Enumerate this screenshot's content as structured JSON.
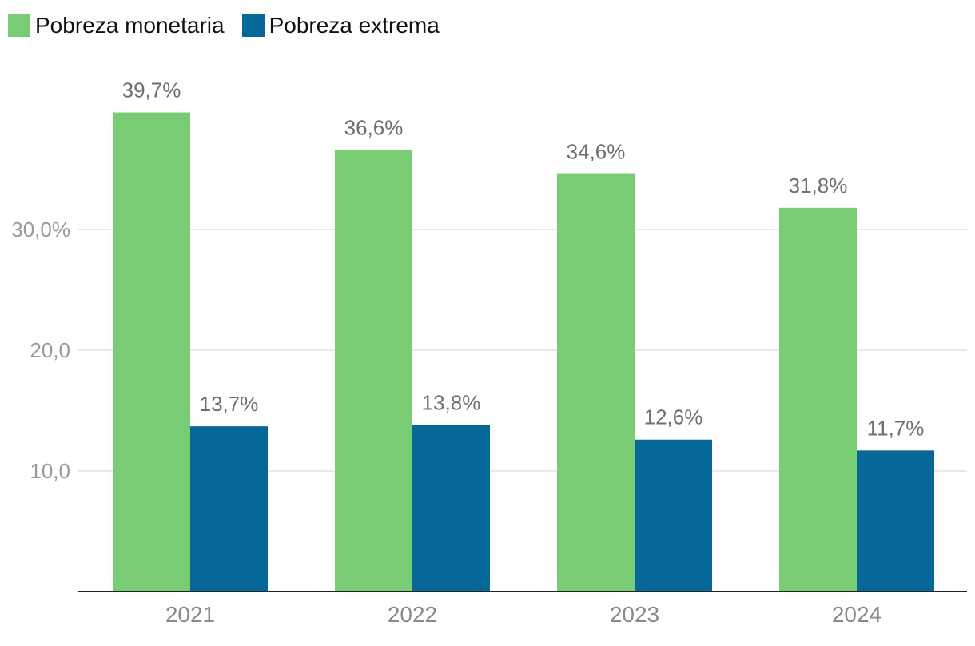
{
  "chart_data": {
    "type": "bar",
    "categories": [
      "2021",
      "2022",
      "2023",
      "2024"
    ],
    "series": [
      {
        "name": "Pobreza monetaria",
        "color": "#78cd74",
        "values": [
          39.7,
          36.6,
          34.6,
          31.8
        ],
        "labels": [
          "39,7%",
          "36,6%",
          "34,6%",
          "31,8%"
        ]
      },
      {
        "name": "Pobreza extrema",
        "color": "#066899",
        "values": [
          13.7,
          13.8,
          12.6,
          11.7
        ],
        "labels": [
          "13,7%",
          "13,8%",
          "12,6%",
          "11,7%"
        ]
      }
    ],
    "yticks": [
      {
        "value": 10,
        "label": "10,0"
      },
      {
        "value": 20,
        "label": "20,0"
      },
      {
        "value": 30,
        "label": "30,0%"
      }
    ],
    "ylim": [
      0,
      43
    ],
    "grid": true,
    "legend_position": "top-left",
    "title": "",
    "xlabel": "",
    "ylabel": ""
  }
}
